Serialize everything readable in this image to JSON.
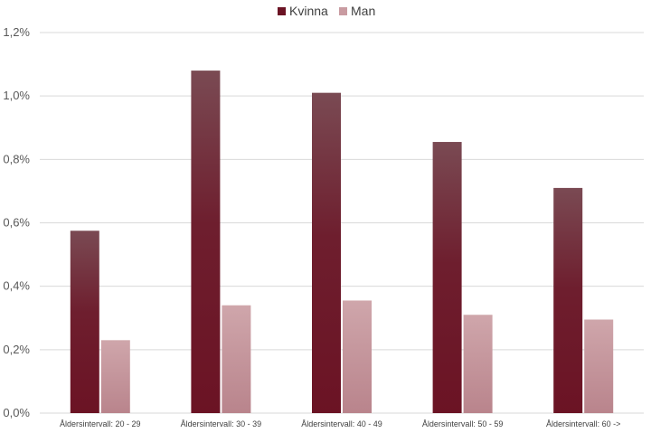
{
  "chart_data": {
    "type": "bar",
    "title": "",
    "xlabel": "",
    "ylabel": "",
    "categories": [
      "Åldersintervall: 20 - 29",
      "Åldersintervall: 30 - 39",
      "Åldersintervall: 40 - 49",
      "Åldersintervall: 50 - 59",
      "Åldersintervall: 60 ->"
    ],
    "series": [
      {
        "name": "Kvinna",
        "values": [
          0.575,
          1.08,
          1.01,
          0.855,
          0.71
        ],
        "color": "#6b1324",
        "color_top": "#7a4a53"
      },
      {
        "name": "Man",
        "values": [
          0.23,
          0.34,
          0.355,
          0.31,
          0.295
        ],
        "color": "#c99ba1",
        "color_top": "#cfa6ab"
      }
    ],
    "ylim": [
      0,
      1.2
    ],
    "yticks": [
      0,
      0.2,
      0.4,
      0.6,
      0.8,
      1.0,
      1.2
    ],
    "ytick_labels": [
      "0,0%",
      "0,2%",
      "0,4%",
      "0,6%",
      "0,8%",
      "1,0%",
      "1,2%"
    ],
    "grid": true,
    "legend_position": "top"
  }
}
